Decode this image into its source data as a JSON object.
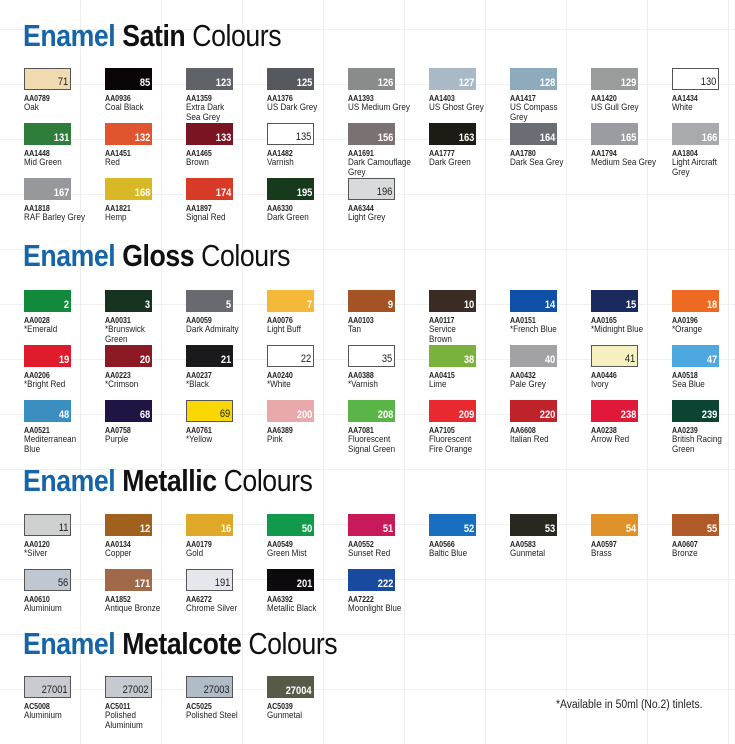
{
  "sections": [
    {
      "title": [
        "Enamel",
        "Satin",
        "Colours"
      ],
      "swatches": [
        {
          "num": "71",
          "code": "AA0789",
          "name": "Oak",
          "color": "#f0dbb0",
          "light": true
        },
        {
          "num": "85",
          "code": "AA0936",
          "name": "Coal Black",
          "color": "#0a0608"
        },
        {
          "num": "123",
          "code": "AA1359",
          "name": "Extra Dark\nSea Grey",
          "color": "#5f6368"
        },
        {
          "num": "125",
          "code": "AA1376",
          "name": "US Dark Grey",
          "color": "#55595e"
        },
        {
          "num": "126",
          "code": "AA1393",
          "name": "US Medium Grey",
          "color": "#8a8b8b"
        },
        {
          "num": "127",
          "code": "AA1403",
          "name": "US Ghost Grey",
          "color": "#a9bac6"
        },
        {
          "num": "128",
          "code": "AA1417",
          "name": "US Compass\nGrey",
          "color": "#8eaabd"
        },
        {
          "num": "129",
          "code": "AA1420",
          "name": "US Gull Grey",
          "color": "#9a9c9c"
        },
        {
          "num": "130",
          "code": "AA1434",
          "name": "White",
          "color": "#ffffff",
          "light": true
        },
        {
          "num": "131",
          "code": "AA1448",
          "name": "Mid Green",
          "color": "#2f7d3a"
        },
        {
          "num": "132",
          "code": "AA1451",
          "name": "Red",
          "color": "#e05530"
        },
        {
          "num": "133",
          "code": "AA1465",
          "name": "Brown",
          "color": "#7a1422"
        },
        {
          "num": "135",
          "code": "AA1482",
          "name": "Varnish",
          "color": "#ffffff",
          "light": true
        },
        {
          "num": "156",
          "code": "AA1691",
          "name": "Dark Camouflage\nGrey",
          "color": "#7a7272"
        },
        {
          "num": "163",
          "code": "AA1777",
          "name": "Dark Green",
          "color": "#1c1c14"
        },
        {
          "num": "164",
          "code": "AA1780",
          "name": "Dark Sea Grey",
          "color": "#6a6e74"
        },
        {
          "num": "165",
          "code": "AA1794",
          "name": "Medium Sea Grey",
          "color": "#9a9ca2"
        },
        {
          "num": "166",
          "code": "AA1804",
          "name": "Light Aircraft\nGrey",
          "color": "#a8aaae"
        },
        {
          "num": "167",
          "code": "AA1818",
          "name": "RAF Barley Grey",
          "color": "#97989c"
        },
        {
          "num": "168",
          "code": "AA1821",
          "name": "Hemp",
          "color": "#d8b826"
        },
        {
          "num": "174",
          "code": "AA1897",
          "name": "Signal Red",
          "color": "#d83a28"
        },
        {
          "num": "195",
          "code": "AA6330",
          "name": "Dark Green",
          "color": "#173a1c"
        },
        {
          "num": "196",
          "code": "AA6344",
          "name": "Light Grey",
          "color": "#d8dadc",
          "light": true
        }
      ]
    },
    {
      "title": [
        "Enamel",
        "Gloss",
        "Colours"
      ],
      "swatches": [
        {
          "num": "2",
          "code": "AA0028",
          "name": "*Emerald",
          "color": "#118a3c"
        },
        {
          "num": "3",
          "code": "AA0031",
          "name": "*Brunswick\nGreen",
          "color": "#15331e"
        },
        {
          "num": "5",
          "code": "AA0059",
          "name": "Dark Admiralty",
          "color": "#686a70"
        },
        {
          "num": "7",
          "code": "AA0076",
          "name": "Light Buff",
          "color": "#f5b93a"
        },
        {
          "num": "9",
          "code": "AA0103",
          "name": "Tan",
          "color": "#a45424"
        },
        {
          "num": "10",
          "code": "AA0117",
          "name": "Service\nBrown",
          "color": "#3a2c22"
        },
        {
          "num": "14",
          "code": "AA0151",
          "name": "*French Blue",
          "color": "#0e4fa8"
        },
        {
          "num": "15",
          "code": "AA0165",
          "name": "*Midnight Blue",
          "color": "#1a2a5e"
        },
        {
          "num": "18",
          "code": "AA0196",
          "name": "*Orange",
          "color": "#ee6a22"
        },
        {
          "num": "19",
          "code": "AA0206",
          "name": "*Bright Red",
          "color": "#e01c2c"
        },
        {
          "num": "20",
          "code": "AA0223",
          "name": "*Crimson",
          "color": "#8c1a24"
        },
        {
          "num": "21",
          "code": "AA0237",
          "name": "*Black",
          "color": "#1a1a1c"
        },
        {
          "num": "22",
          "code": "AA0240",
          "name": "*White",
          "color": "#ffffff",
          "light": true
        },
        {
          "num": "35",
          "code": "AA0388",
          "name": "*Varnish",
          "color": "#ffffff",
          "light": true
        },
        {
          "num": "38",
          "code": "AA0415",
          "name": "Lime",
          "color": "#7ab23e"
        },
        {
          "num": "40",
          "code": "AA0432",
          "name": "Pale Grey",
          "color": "#a2a2a4"
        },
        {
          "num": "41",
          "code": "AA0446",
          "name": "Ivory",
          "color": "#f6f0c0",
          "light": true
        },
        {
          "num": "47",
          "code": "AA0518",
          "name": "Sea Blue",
          "color": "#4ea8e0"
        },
        {
          "num": "48",
          "code": "AA0521",
          "name": "Mediterranean\nBlue",
          "color": "#3a8ec0"
        },
        {
          "num": "68",
          "code": "AA0758",
          "name": "Purple",
          "color": "#201444"
        },
        {
          "num": "69",
          "code": "AA0761",
          "name": "*Yellow",
          "color": "#f8d800",
          "light": true
        },
        {
          "num": "200",
          "code": "AA6389",
          "name": "Pink",
          "color": "#e8a8ac"
        },
        {
          "num": "208",
          "code": "AA7081",
          "name": "Fluorescent\nSignal Green",
          "color": "#5ab448"
        },
        {
          "num": "209",
          "code": "AA7105",
          "name": "Fluorescent\nFire Orange",
          "color": "#e82a30"
        },
        {
          "num": "220",
          "code": "AA6608",
          "name": "Italian Red",
          "color": "#c0222a"
        },
        {
          "num": "238",
          "code": "AA0238",
          "name": "Arrow Red",
          "color": "#e0183a"
        },
        {
          "num": "239",
          "code": "AA0239",
          "name": "British Racing\nGreen",
          "color": "#0c4434"
        }
      ]
    },
    {
      "title": [
        "Enamel",
        "Metallic",
        "Colours"
      ],
      "swatches": [
        {
          "num": "11",
          "code": "AA0120",
          "name": "*Silver",
          "color": "#cfd0d0",
          "light": true
        },
        {
          "num": "12",
          "code": "AA0134",
          "name": "Copper",
          "color": "#a0601e"
        },
        {
          "num": "16",
          "code": "AA0179",
          "name": "Gold",
          "color": "#e0a828"
        },
        {
          "num": "50",
          "code": "AA0549",
          "name": "Green Mist",
          "color": "#119a4c"
        },
        {
          "num": "51",
          "code": "AA0552",
          "name": "Sunset Red",
          "color": "#c81a5a"
        },
        {
          "num": "52",
          "code": "AA0566",
          "name": "Baltic Blue",
          "color": "#1a6ec0"
        },
        {
          "num": "53",
          "code": "AA0583",
          "name": "Gunmetal",
          "color": "#282820"
        },
        {
          "num": "54",
          "code": "AA0597",
          "name": "Brass",
          "color": "#e0922a"
        },
        {
          "num": "55",
          "code": "AA0607",
          "name": "Bronze",
          "color": "#b05a28"
        },
        {
          "num": "56",
          "code": "AA0610",
          "name": "Aluminium",
          "color": "#bfc8d0",
          "light": true
        },
        {
          "num": "171",
          "code": "AA1852",
          "name": "Antique Bronze",
          "color": "#a06a4a"
        },
        {
          "num": "191",
          "code": "AA6272",
          "name": "Chrome Silver",
          "color": "#e4e8ec",
          "light": true
        },
        {
          "num": "201",
          "code": "AA6392",
          "name": "Metallic Black",
          "color": "#0c0a0c"
        },
        {
          "num": "222",
          "code": "AA7222",
          "name": "Moonlight Blue",
          "color": "#1a4aa0"
        }
      ]
    },
    {
      "title": [
        "Enamel",
        "Metalcote",
        "Colours"
      ],
      "swatches": [
        {
          "num": "27001",
          "code": "AC5008",
          "name": "Aluminium",
          "color": "#c8ccd0",
          "light": true
        },
        {
          "num": "27002",
          "code": "AC5011",
          "name": "Polished\nAluminium",
          "color": "#c4cad0",
          "light": true
        },
        {
          "num": "27003",
          "code": "AC5025",
          "name": "Polished Steel",
          "color": "#b0bcc8",
          "light": true
        },
        {
          "num": "27004",
          "code": "AC5039",
          "name": "Gunmetal",
          "color": "#585a48"
        }
      ]
    }
  ],
  "footnote": "*Available in 50ml (No.2) tinlets."
}
